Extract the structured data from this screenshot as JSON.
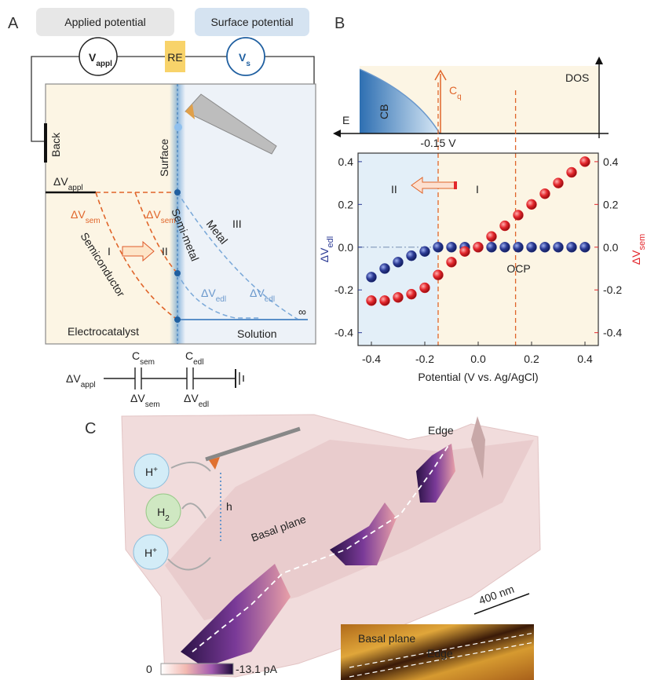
{
  "panels": {
    "A": {
      "label": "A",
      "applied_potential": "Applied potential",
      "surface_potential": "Surface potential",
      "v_appl": {
        "text": "V",
        "sub": "appl"
      },
      "re": "RE",
      "v_s": {
        "text": "V",
        "sub": "s"
      },
      "back": "Back",
      "surface": "Surface",
      "dv_appl": {
        "text": "ΔV",
        "sub": "appl"
      },
      "dv_sem_1": {
        "text": "ΔV",
        "sub": "sem"
      },
      "dv_sem_2": {
        "text": "ΔV",
        "sub": "sem"
      },
      "semiconductor": "Semiconductor",
      "semi_metal": "Semi-metal",
      "metal": "Metal",
      "region_1": "I",
      "region_2": "II",
      "region_3": "III",
      "dv_edl_1": {
        "text": "ΔV",
        "sub": "edl"
      },
      "dv_edl_2": {
        "text": "ΔV",
        "sub": "edl"
      },
      "infinity": "∞",
      "electrocatalyst": "Electrocatalyst",
      "solution": "Solution",
      "circuit": {
        "dv_appl": {
          "text": "ΔV",
          "sub": "appl"
        },
        "c_sem": {
          "text": "C",
          "sub": "sem"
        },
        "c_edl": {
          "text": "C",
          "sub": "edl"
        },
        "dv_sem": {
          "text": "ΔV",
          "sub": "sem"
        },
        "dv_edl": {
          "text": "ΔV",
          "sub": "edl"
        }
      }
    },
    "B": {
      "label": "B",
      "cb": "CB",
      "cq": {
        "text": "C",
        "sub": "q"
      },
      "e_axis": "E",
      "dos_axis": "DOS"
    },
    "C": {
      "label": "C",
      "edge": "Edge",
      "basal_plane": "Basal plane",
      "h": "h",
      "h_plus_1": {
        "text": "H",
        "sup": "+"
      },
      "h2": {
        "text": "H",
        "sub": "2"
      },
      "h_plus_2": {
        "text": "H",
        "sup": "+"
      },
      "scale_bar": "400 nm",
      "colorbar_min": "0",
      "colorbar_max": "-13.1 pA",
      "inset_basal_plane": "Basal plane",
      "inset_edge": "Edge"
    }
  },
  "chart_data": {
    "type": "scatter",
    "xlabel": "Potential (V vs. Ag/AgCl)",
    "x": [
      -0.4,
      -0.35,
      -0.3,
      -0.25,
      -0.2,
      -0.15,
      -0.1,
      -0.05,
      0,
      0.05,
      0.1,
      0.15,
      0.2,
      0.25,
      0.3,
      0.35,
      0.4
    ],
    "series": [
      {
        "name": {
          "text": "ΔV",
          "sub": "edl"
        },
        "color": "#2b3a94",
        "values": [
          -0.14,
          -0.1,
          -0.07,
          -0.04,
          -0.02,
          0,
          0,
          0,
          0,
          0,
          0,
          0,
          0,
          0,
          0,
          0,
          0
        ]
      },
      {
        "name": {
          "text": "ΔV",
          "sub": "sem"
        },
        "color": "#e3262b",
        "axis": "y2",
        "values": [
          -0.25,
          -0.25,
          -0.235,
          -0.22,
          -0.19,
          -0.13,
          -0.07,
          -0.02,
          0,
          0.05,
          0.1,
          0.15,
          0.2,
          0.25,
          0.3,
          0.35,
          0.4
        ]
      }
    ],
    "xlim": [
      -0.45,
      0.45
    ],
    "ylim": [
      -0.46,
      0.44
    ],
    "y2lim": [
      -0.46,
      0.44
    ],
    "xticks": [
      -0.4,
      -0.2,
      {
        "value": 0,
        "label": "0.0"
      },
      0.2,
      0.4
    ],
    "yticks": [
      -0.4,
      -0.2,
      {
        "value": 0,
        "label": "0.0"
      },
      0.2,
      0.4
    ],
    "y2ticks": [
      -0.4,
      -0.2,
      {
        "value": 0,
        "label": "0.0"
      },
      0.2,
      0.4
    ],
    "vlines": [
      {
        "x": -0.15,
        "label": "-0.15 V"
      },
      {
        "x": 0.14,
        "label": "OCP"
      }
    ],
    "region_labels": [
      "II",
      "I"
    ]
  }
}
